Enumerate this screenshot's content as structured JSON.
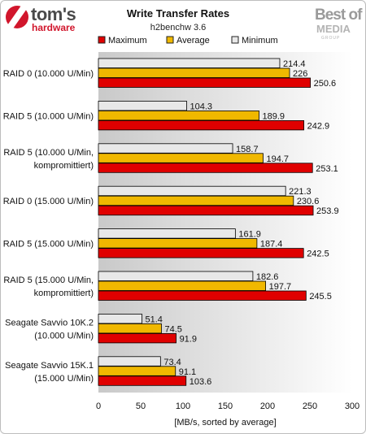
{
  "header": {
    "logo_main": "tom's",
    "logo_sub": "hardware",
    "badge_line1": "Best of",
    "badge_line2": "MEDIA",
    "badge_line3": "GROUP"
  },
  "colors": {
    "maximum": "#e00000",
    "average": "#f0b800",
    "minimum": "#e8e8e8",
    "plot_grad_left": "#c9c9c9",
    "plot_grad_right": "#ffffff"
  },
  "chart_data": {
    "type": "bar",
    "orientation": "horizontal",
    "title": "Write Transfer Rates",
    "subtitle": "h2benchw 3.6",
    "xlabel": "[MB/s, sorted by average]",
    "ylabel": "",
    "xlim": [
      0,
      300
    ],
    "xticks": [
      0,
      50,
      100,
      150,
      200,
      250,
      300
    ],
    "grid": false,
    "legend": "top",
    "categories": [
      "RAID 0 (10.000 U/Min)",
      "RAID 5 (10.000 U/Min)",
      "RAID 5 (10.000 U/Min, kompromittiert)",
      "RAID 0 (15.000 U/Min)",
      "RAID 5 (15.000 U/Min)",
      "RAID 5 (15.000 U/Min, kompromittiert)",
      "Seagate Savvio 10K.2 (10.000 U/Min)",
      "Seagate Savvio 15K.1 (15.000 U/Min)"
    ],
    "category_lines": [
      [
        "RAID 0 (10.000 U/Min)"
      ],
      [
        "RAID 5 (10.000 U/Min)"
      ],
      [
        "RAID 5 (10.000 U/Min,",
        "kompromittiert)"
      ],
      [
        "RAID 0 (15.000 U/Min)"
      ],
      [
        "RAID 5 (15.000 U/Min)"
      ],
      [
        "RAID 5 (15.000 U/Min,",
        "kompromittiert)"
      ],
      [
        "Seagate Savvio 10K.2",
        "(10.000 U/Min)"
      ],
      [
        "Seagate Savvio 15K.1",
        "(15.000 U/Min)"
      ]
    ],
    "series": [
      {
        "name": "Maximum",
        "values": [
          250.6,
          242.9,
          253.1,
          253.9,
          242.5,
          245.5,
          91.9,
          103.6
        ]
      },
      {
        "name": "Average",
        "values": [
          226,
          189.9,
          194.7,
          230.6,
          187.4,
          197.7,
          74.5,
          91.1
        ]
      },
      {
        "name": "Minimum",
        "values": [
          214.4,
          104.3,
          158.7,
          221.3,
          161.9,
          182.6,
          51.4,
          73.4
        ]
      }
    ],
    "value_labels": {
      "Maximum": [
        "250.6",
        "242.9",
        "253.1",
        "253.9",
        "242.5",
        "245.5",
        "91.9",
        "103.6"
      ],
      "Average": [
        "226",
        "189.9",
        "194.7",
        "230.6",
        "187.4",
        "197.7",
        "74.5",
        "91.1"
      ],
      "Minimum": [
        "214.4",
        "104.3",
        "158.7",
        "221.3",
        "161.9",
        "182.6",
        "51.4",
        "73.4"
      ]
    }
  }
}
